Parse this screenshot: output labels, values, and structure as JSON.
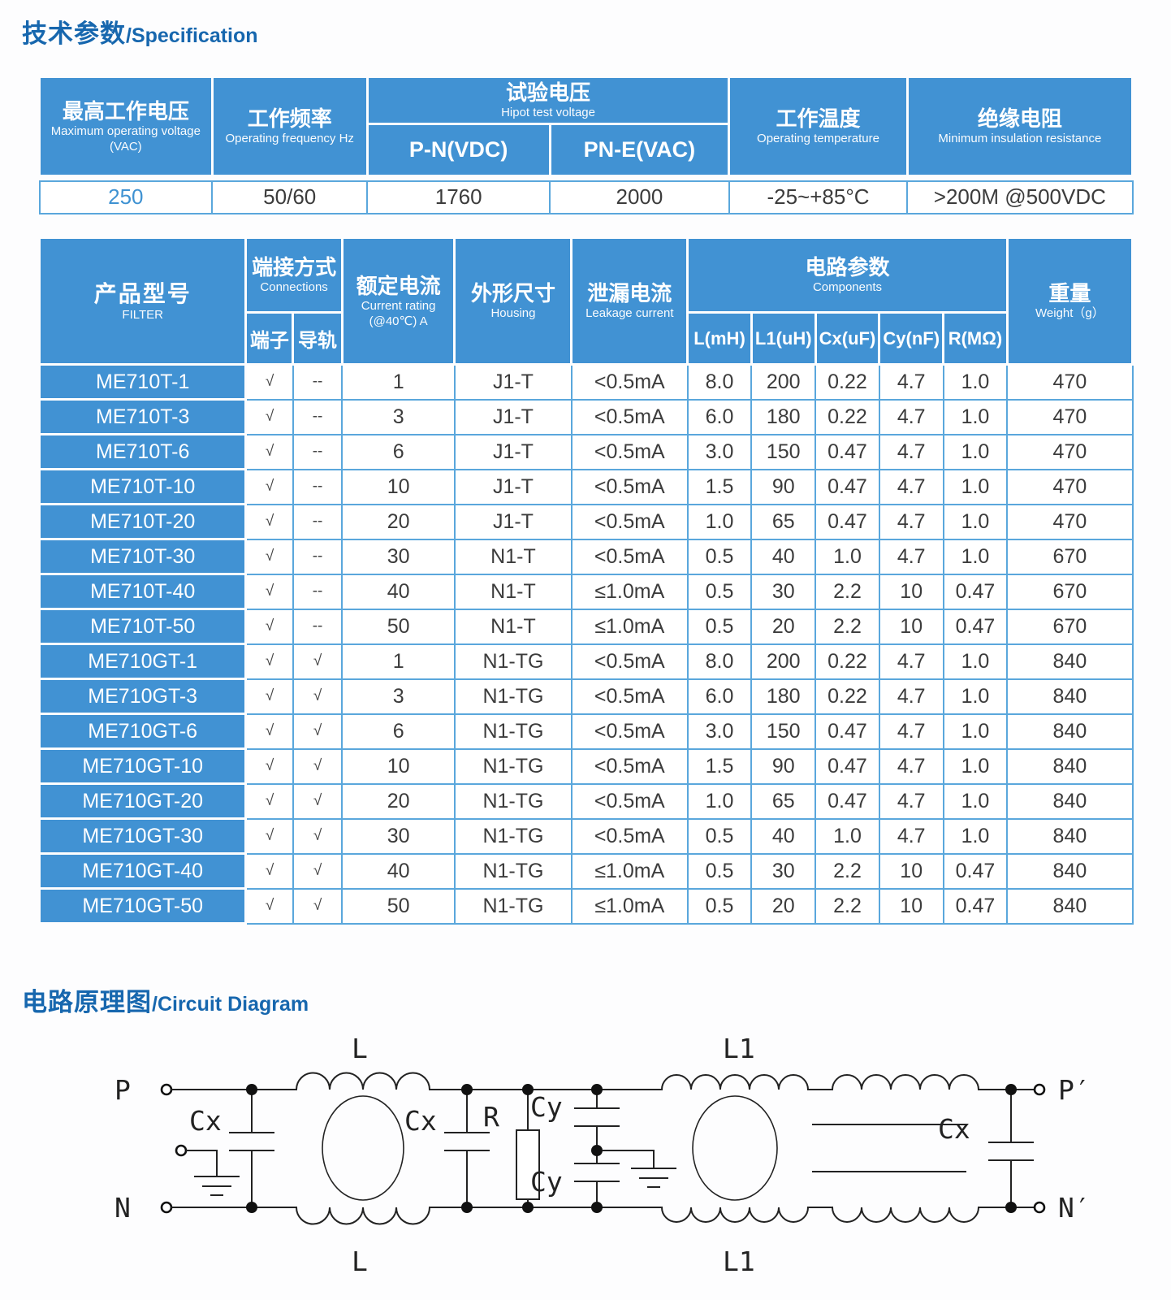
{
  "titles": {
    "spec_zh": "技术参数",
    "spec_en": "/Specification",
    "circuit_zh": "电路原理图",
    "circuit_en": "/Circuit Diagram"
  },
  "colors": {
    "header_blue": "#4192d3",
    "title_blue": "#1767ae",
    "grid_blue": "#5aa7dc",
    "accent_value": "#3f92d2"
  },
  "spec_table": {
    "headers": {
      "max_voltage": {
        "zh": "最高工作电压",
        "en": "Maximum operating voltage　(VAC)"
      },
      "frequency": {
        "zh": "工作频率",
        "en": "Operating frequency Hz"
      },
      "hipot": {
        "zh": "试验电压",
        "en": "Hipot test voltage",
        "sub1": "P-N(VDC)",
        "sub2": "PN-E(VAC)"
      },
      "temperature": {
        "zh": "工作温度",
        "en": "Operating temperature"
      },
      "insulation": {
        "zh": "绝缘电阻",
        "en": "Minimum insulation resistance"
      }
    },
    "values": {
      "max_voltage": "250",
      "frequency": "50/60",
      "pn_vdc": "1760",
      "pn_e_vac": "2000",
      "temperature": "-25~+85°C",
      "insulation": ">200M @500VDC"
    }
  },
  "product_table": {
    "headers": {
      "filter": {
        "zh": "产品型号",
        "en": "FILTER"
      },
      "connections": {
        "zh": "端接方式",
        "en": "Connections",
        "sub1": "端子",
        "sub2": "导轨"
      },
      "current": {
        "zh": "额定电流",
        "en1": "Current rating",
        "en2": "(@40℃)  A"
      },
      "housing": {
        "zh": "外形尺寸",
        "en": "Housing"
      },
      "leakage": {
        "zh": "泄漏电流",
        "en": "Leakage current"
      },
      "components": {
        "zh": "电路参数",
        "en": "Components",
        "sub1": "L(mH)",
        "sub2": "L1(uH)",
        "sub3": "Cx(uF)",
        "sub4": "Cy(nF)",
        "sub5": "R(MΩ)"
      },
      "weight": {
        "zh": "重量",
        "en": "Weight（g）"
      }
    },
    "rows": [
      {
        "model": "ME710T-1",
        "terminal": "√",
        "rail": "--",
        "current": "1",
        "housing": "J1-T",
        "leakage": "<0.5mA",
        "l": "8.0",
        "l1": "200",
        "cx": "0.22",
        "cy": "4.7",
        "r": "1.0",
        "weight": "470"
      },
      {
        "model": "ME710T-3",
        "terminal": "√",
        "rail": "--",
        "current": "3",
        "housing": "J1-T",
        "leakage": "<0.5mA",
        "l": "6.0",
        "l1": "180",
        "cx": "0.22",
        "cy": "4.7",
        "r": "1.0",
        "weight": "470"
      },
      {
        "model": "ME710T-6",
        "terminal": "√",
        "rail": "--",
        "current": "6",
        "housing": "J1-T",
        "leakage": "<0.5mA",
        "l": "3.0",
        "l1": "150",
        "cx": "0.47",
        "cy": "4.7",
        "r": "1.0",
        "weight": "470"
      },
      {
        "model": "ME710T-10",
        "terminal": "√",
        "rail": "--",
        "current": "10",
        "housing": "J1-T",
        "leakage": "<0.5mA",
        "l": "1.5",
        "l1": "90",
        "cx": "0.47",
        "cy": "4.7",
        "r": "1.0",
        "weight": "470"
      },
      {
        "model": "ME710T-20",
        "terminal": "√",
        "rail": "--",
        "current": "20",
        "housing": "J1-T",
        "leakage": "<0.5mA",
        "l": "1.0",
        "l1": "65",
        "cx": "0.47",
        "cy": "4.7",
        "r": "1.0",
        "weight": "470"
      },
      {
        "model": "ME710T-30",
        "terminal": "√",
        "rail": "--",
        "current": "30",
        "housing": "N1-T",
        "leakage": "<0.5mA",
        "l": "0.5",
        "l1": "40",
        "cx": "1.0",
        "cy": "4.7",
        "r": "1.0",
        "weight": "670"
      },
      {
        "model": "ME710T-40",
        "terminal": "√",
        "rail": "--",
        "current": "40",
        "housing": "N1-T",
        "leakage": "≤1.0mA",
        "l": "0.5",
        "l1": "30",
        "cx": "2.2",
        "cy": "10",
        "r": "0.47",
        "weight": "670"
      },
      {
        "model": "ME710T-50",
        "terminal": "√",
        "rail": "--",
        "current": "50",
        "housing": "N1-T",
        "leakage": "≤1.0mA",
        "l": "0.5",
        "l1": "20",
        "cx": "2.2",
        "cy": "10",
        "r": "0.47",
        "weight": "670"
      },
      {
        "model": "ME710GT-1",
        "terminal": "√",
        "rail": "√",
        "current": "1",
        "housing": "N1-TG",
        "leakage": "<0.5mA",
        "l": "8.0",
        "l1": "200",
        "cx": "0.22",
        "cy": "4.7",
        "r": "1.0",
        "weight": "840"
      },
      {
        "model": "ME710GT-3",
        "terminal": "√",
        "rail": "√",
        "current": "3",
        "housing": "N1-TG",
        "leakage": "<0.5mA",
        "l": "6.0",
        "l1": "180",
        "cx": "0.22",
        "cy": "4.7",
        "r": "1.0",
        "weight": "840"
      },
      {
        "model": "ME710GT-6",
        "terminal": "√",
        "rail": "√",
        "current": "6",
        "housing": "N1-TG",
        "leakage": "<0.5mA",
        "l": "3.0",
        "l1": "150",
        "cx": "0.47",
        "cy": "4.7",
        "r": "1.0",
        "weight": "840"
      },
      {
        "model": "ME710GT-10",
        "terminal": "√",
        "rail": "√",
        "current": "10",
        "housing": "N1-TG",
        "leakage": "<0.5mA",
        "l": "1.5",
        "l1": "90",
        "cx": "0.47",
        "cy": "4.7",
        "r": "1.0",
        "weight": "840"
      },
      {
        "model": "ME710GT-20",
        "terminal": "√",
        "rail": "√",
        "current": "20",
        "housing": "N1-TG",
        "leakage": "<0.5mA",
        "l": "1.0",
        "l1": "65",
        "cx": "0.47",
        "cy": "4.7",
        "r": "1.0",
        "weight": "840"
      },
      {
        "model": "ME710GT-30",
        "terminal": "√",
        "rail": "√",
        "current": "30",
        "housing": "N1-TG",
        "leakage": "<0.5mA",
        "l": "0.5",
        "l1": "40",
        "cx": "1.0",
        "cy": "4.7",
        "r": "1.0",
        "weight": "840"
      },
      {
        "model": "ME710GT-40",
        "terminal": "√",
        "rail": "√",
        "current": "40",
        "housing": "N1-TG",
        "leakage": "≤1.0mA",
        "l": "0.5",
        "l1": "30",
        "cx": "2.2",
        "cy": "10",
        "r": "0.47",
        "weight": "840"
      },
      {
        "model": "ME710GT-50",
        "terminal": "√",
        "rail": "√",
        "current": "50",
        "housing": "N1-TG",
        "leakage": "≤1.0mA",
        "l": "0.5",
        "l1": "20",
        "cx": "2.2",
        "cy": "10",
        "r": "0.47",
        "weight": "840"
      }
    ]
  },
  "circuit": {
    "labels": {
      "p_in": "P",
      "n_in": "N",
      "p_out": "P′",
      "n_out": "N′",
      "l_top": "L",
      "l_bottom": "L",
      "l1_top": "L1",
      "l1_bottom": "L1",
      "cx1": "Cx",
      "cx2": "Cx",
      "cx3": "Cx",
      "r": "R",
      "cy_top": "Cy",
      "cy_bottom": "Cy"
    }
  }
}
